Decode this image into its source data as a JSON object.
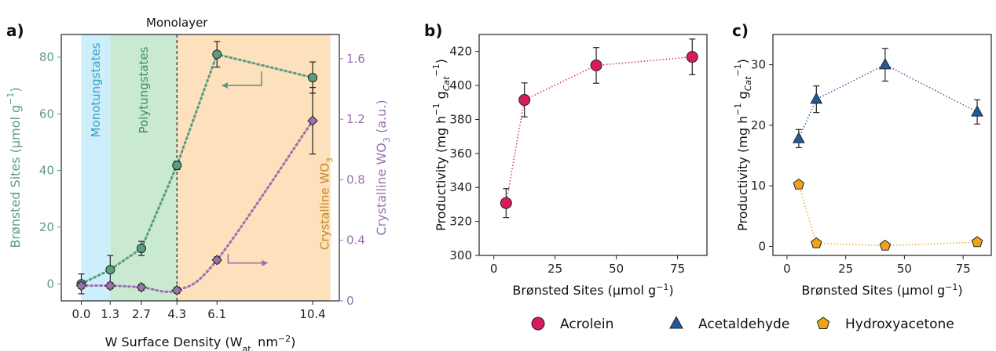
{
  "panels": {
    "a": "a)",
    "b": "b)",
    "c": "c)"
  },
  "chart_data": [
    {
      "panel": "a",
      "type": "line",
      "title": "",
      "xlabel": "W Surface Density (W",
      "xlabel_sub": "at.",
      "xlabel_tail": " nm",
      "xlabel_sup": "−2",
      "xlabel_close": ")",
      "x_ticks": [
        0.0,
        1.3,
        2.7,
        4.3,
        6.1,
        10.4
      ],
      "x_tick_labels": [
        "0.0",
        "1.3",
        "2.7",
        "4.3",
        "6.1",
        "10.4"
      ],
      "xlim": [
        -0.9,
        11.6
      ],
      "ylabel_left": "Brønsted Sites (μmol g",
      "ylabel_left_sup": "−1",
      "ylabel_left_close": ")",
      "ylim_left": [
        -6,
        88
      ],
      "y_left_ticks": [
        0,
        20,
        40,
        60,
        80
      ],
      "ylabel_right": "Crystalline WO",
      "ylabel_right_sub": "3",
      "ylabel_right_tail": " (a.u.)",
      "ylim_right": [
        0,
        1.76
      ],
      "y_right_ticks": [
        "0",
        "0.4",
        "0.8",
        "1.2",
        "1.6"
      ],
      "y_right_tick_values": [
        0,
        0.4,
        0.8,
        1.2,
        1.6
      ],
      "regions": [
        {
          "label": "Monotungstates",
          "x0": 0.0,
          "x1": 1.3,
          "color": "#cdeefb",
          "text_color": "#3b9fc4"
        },
        {
          "label": "Polytungstates",
          "x0": 1.3,
          "x1": 4.3,
          "color": "#c9ead0",
          "text_color": "#3a8f5e"
        },
        {
          "label": "Crystalline WO",
          "label_sub": "3",
          "x0": 4.3,
          "x1": 11.2,
          "color": "#fde0bc",
          "text_color": "#c58a20"
        }
      ],
      "monolayer_x": 4.3,
      "monolayer_label": "Monolayer",
      "series": [
        {
          "axis": "left",
          "color": "#5a9e82",
          "marker": "circle",
          "x": [
            0.0,
            1.3,
            2.7,
            4.3,
            6.1,
            10.4
          ],
          "y": [
            0,
            5,
            12.5,
            41.8,
            81,
            72.8
          ],
          "err": [
            3.5,
            5,
            2.5,
            1.5,
            4.5,
            5.5
          ]
        },
        {
          "axis": "right",
          "color": "#9b72b0",
          "marker": "diamond",
          "x": [
            0.0,
            1.3,
            2.7,
            4.3,
            6.1,
            10.4
          ],
          "y": [
            0.1,
            0.1,
            0.09,
            0.07,
            0.27,
            1.19
          ],
          "err": [
            0.02,
            0.02,
            0.02,
            0.02,
            0.02,
            0.22
          ]
        }
      ]
    },
    {
      "panel": "b",
      "type": "scatter",
      "title": "",
      "xlabel": "Brønsted Sites (μmol g",
      "xlabel_sup": "−1",
      "xlabel_close": ")",
      "ylabel": "Productivity (mg h",
      "ylabel_sup1": "−1",
      "ylabel_mid": " g",
      "ylabel_sub": "Cat",
      "ylabel_sup2": "−1",
      "ylabel_close": ")",
      "xlim": [
        -6,
        87
      ],
      "ylim": [
        300,
        430
      ],
      "x_ticks": [
        0,
        25,
        50,
        75
      ],
      "y_ticks": [
        300,
        320,
        340,
        360,
        380,
        400,
        420
      ],
      "series": [
        {
          "name": "Acrolein",
          "color": "#d81b60",
          "marker": "circle",
          "x": [
            5,
            12.5,
            41.8,
            81
          ],
          "y": [
            330.8,
            391.5,
            411.8,
            416.8
          ],
          "err": [
            8.5,
            10,
            10.5,
            10.5
          ]
        }
      ]
    },
    {
      "panel": "c",
      "type": "scatter",
      "title": "",
      "xlabel": "Brønsted Sites (μmol g",
      "xlabel_sup": "−1",
      "xlabel_close": ")",
      "ylabel": "Productivity (mg h",
      "ylabel_sup1": "−1",
      "ylabel_mid": " g",
      "ylabel_sub": "Cat",
      "ylabel_sup2": "−1",
      "ylabel_close": ")",
      "xlim": [
        -6,
        87
      ],
      "ylim": [
        -1.5,
        35
      ],
      "x_ticks": [
        0,
        25,
        50,
        75
      ],
      "y_ticks": [
        0,
        10,
        20,
        30
      ],
      "series": [
        {
          "name": "Acetaldehyde",
          "color": "#1f5c99",
          "marker": "triangle",
          "x": [
            5,
            12.5,
            41.8,
            81
          ],
          "y": [
            17.8,
            24.3,
            30,
            22.2
          ],
          "err": [
            1.5,
            2.2,
            2.7,
            2.0
          ]
        },
        {
          "name": "Hydroxyacetone",
          "color": "#f0a318",
          "marker": "pentagon",
          "x": [
            5,
            12.5,
            41.8,
            81
          ],
          "y": [
            10.2,
            0.5,
            0.1,
            0.7
          ],
          "err": [
            0,
            0,
            0,
            0
          ]
        }
      ]
    }
  ],
  "legend": {
    "placement": "bottom",
    "items": [
      {
        "label": "Acrolein",
        "color": "#d81b60",
        "marker": "circle"
      },
      {
        "label": "Acetaldehyde",
        "color": "#1f5c99",
        "marker": "triangle"
      },
      {
        "label": "Hydroxyacetone",
        "color": "#f0a318",
        "marker": "pentagon"
      }
    ]
  }
}
